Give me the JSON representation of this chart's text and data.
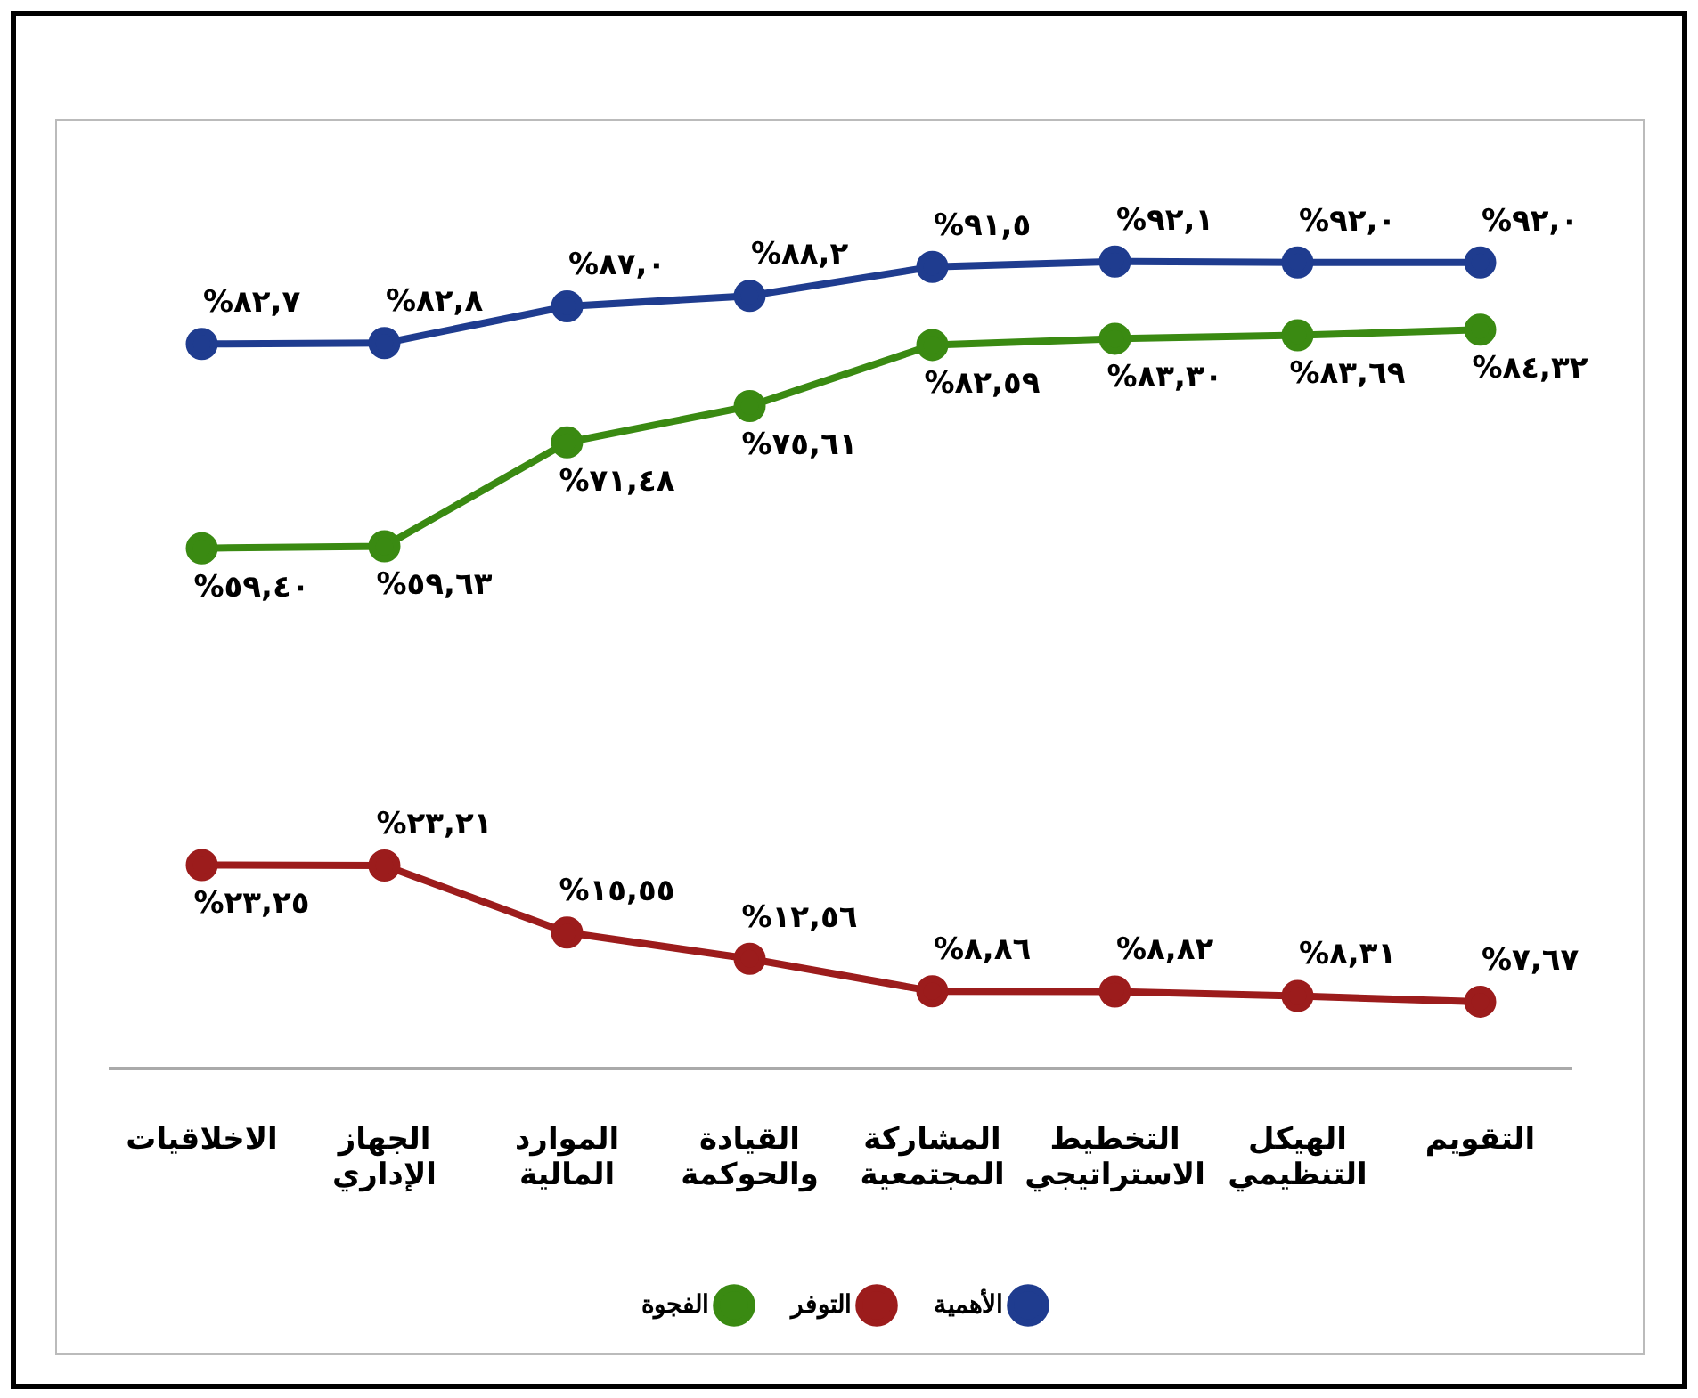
{
  "chart_data": {
    "type": "line",
    "categories": [
      "الاخلاقيات",
      "الجهاز الإداري",
      "الموارد المالية",
      "القيادة والحوكمة",
      "المشاركة المجتمعية",
      "التخطيط الاستراتيجي",
      "الهيكل التنظيمي",
      "التقويم"
    ],
    "series": [
      {
        "name": "الأهمية",
        "color": "#1f3c8f",
        "values": [
          82.7,
          82.8,
          87.0,
          88.2,
          91.5,
          92.1,
          92.0,
          92.0
        ],
        "value_labels": [
          "%٨٢,٧",
          "%٨٢,٨",
          "%٨٧,٠",
          "%٨٨,٢",
          "%٩١,٥",
          "%٩٢,١",
          "%٩٢,٠",
          "%٩٢,٠"
        ]
      },
      {
        "name": "التوفر",
        "color": "#9c1c1c",
        "values": [
          23.25,
          23.21,
          15.55,
          12.56,
          8.86,
          8.82,
          8.31,
          7.67
        ],
        "value_labels": [
          "%٢٣,٢٥",
          "%٢٣,٢١",
          "%١٥,٥٥",
          "%١٢,٥٦",
          "%٨,٨٦",
          "%٨,٨٢",
          "%٨,٣١",
          "%٧,٦٧"
        ]
      },
      {
        "name": "الفجوة",
        "color": "#3a8a12",
        "values": [
          59.4,
          59.63,
          71.48,
          75.61,
          82.59,
          83.3,
          83.69,
          84.32
        ],
        "value_labels": [
          "%٥٩,٤٠",
          "%٥٩,٦٣",
          "%٧١,٤٨",
          "%٧٥,٦١",
          "%٨٢,٥٩",
          "%٨٣,٣٠",
          "%٨٣,٦٩",
          "%٨٤,٣٢"
        ]
      }
    ],
    "legend": "bottom",
    "marker": "circle",
    "line_style": "solid",
    "grid": false
  }
}
